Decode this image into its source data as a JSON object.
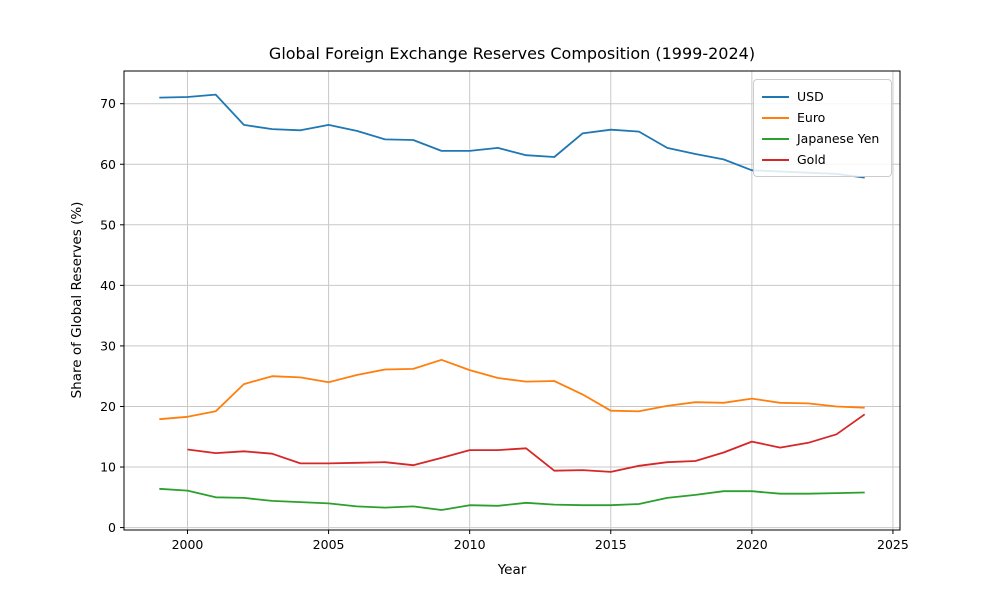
{
  "chart_data": {
    "type": "line",
    "title": "Global Foreign Exchange Reserves Composition (1999-2024)",
    "xlabel": "Year",
    "ylabel": "Share of Global Reserves (%)",
    "xlim": [
      1997.75,
      2025.25
    ],
    "ylim": [
      -0.4,
      75.4
    ],
    "xticks": [
      2000,
      2005,
      2010,
      2015,
      2020,
      2025
    ],
    "yticks": [
      0,
      10,
      20,
      30,
      40,
      50,
      60,
      70
    ],
    "grid": true,
    "legend_position": "upper right",
    "x": [
      1999,
      2000,
      2001,
      2002,
      2003,
      2004,
      2005,
      2006,
      2007,
      2008,
      2009,
      2010,
      2011,
      2012,
      2013,
      2014,
      2015,
      2016,
      2017,
      2018,
      2019,
      2020,
      2021,
      2022,
      2023,
      2024
    ],
    "series": [
      {
        "name": "USD",
        "color": "#1f77b4",
        "values": [
          71.0,
          71.1,
          71.5,
          66.5,
          65.8,
          65.6,
          66.5,
          65.5,
          64.1,
          64.0,
          62.2,
          62.2,
          62.7,
          61.5,
          61.2,
          65.1,
          65.7,
          65.4,
          62.7,
          61.7,
          60.8,
          59.0,
          58.8,
          58.6,
          58.4,
          57.8
        ]
      },
      {
        "name": "Euro",
        "color": "#ff7f0e",
        "values": [
          17.9,
          18.3,
          19.2,
          23.7,
          25.0,
          24.8,
          24.0,
          25.2,
          26.1,
          26.2,
          27.7,
          26.0,
          24.7,
          24.1,
          24.2,
          22.0,
          19.3,
          19.2,
          20.1,
          20.7,
          20.6,
          21.3,
          20.6,
          20.5,
          20.0,
          19.8
        ]
      },
      {
        "name": "Japanese Yen",
        "color": "#2ca02c",
        "values": [
          6.4,
          6.1,
          5.0,
          4.9,
          4.4,
          4.2,
          4.0,
          3.5,
          3.3,
          3.5,
          2.9,
          3.7,
          3.6,
          4.1,
          3.8,
          3.7,
          3.7,
          3.9,
          4.9,
          5.4,
          6.0,
          6.0,
          5.6,
          5.6,
          5.7,
          5.8
        ]
      },
      {
        "name": "Gold",
        "color": "#d62728",
        "values": [
          null,
          12.9,
          12.3,
          12.6,
          12.2,
          10.6,
          10.6,
          10.7,
          10.8,
          10.3,
          11.5,
          12.8,
          12.8,
          13.1,
          9.4,
          9.5,
          9.2,
          10.2,
          10.8,
          11.0,
          12.4,
          14.2,
          13.2,
          14.0,
          15.4,
          18.7
        ]
      }
    ]
  }
}
